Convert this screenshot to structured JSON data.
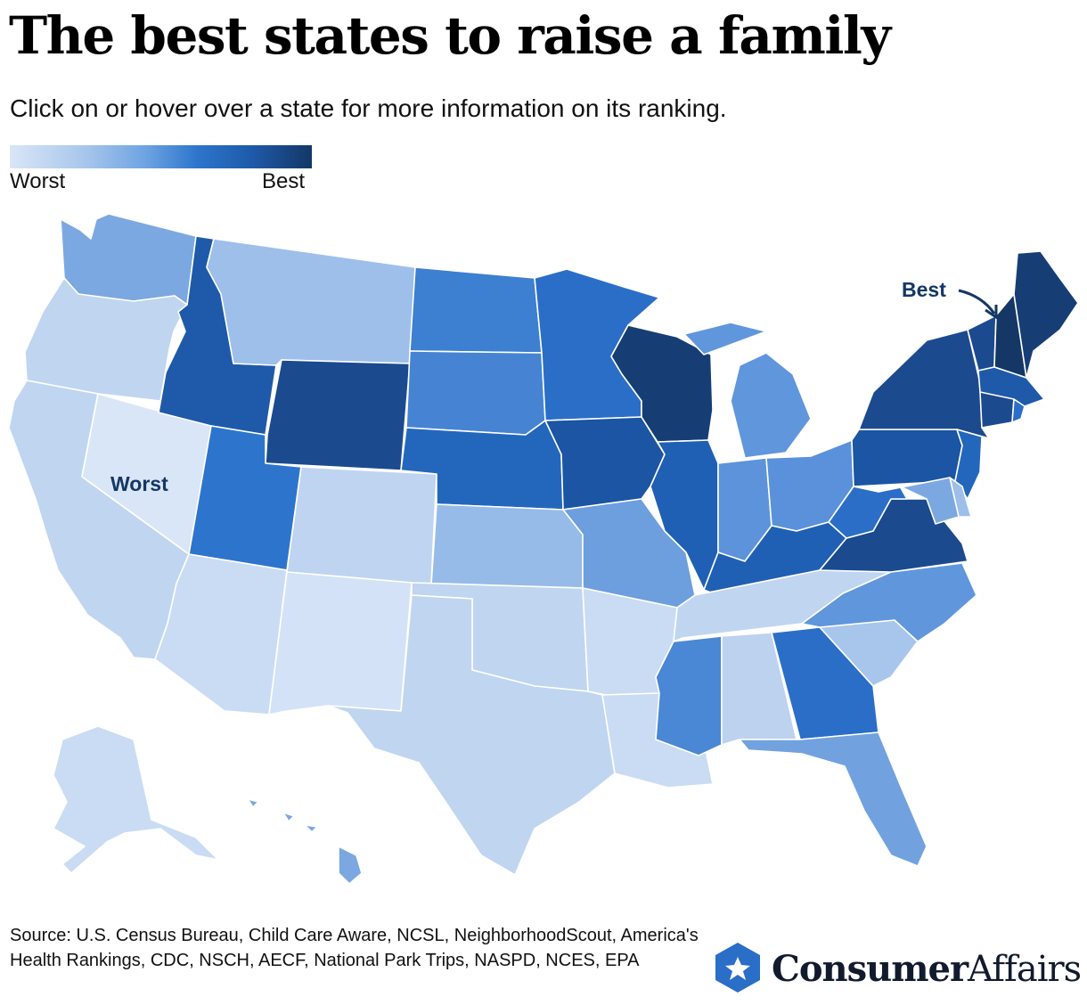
{
  "title": "The best states to raise a family",
  "subtitle": "Click on or hover over a state for more information on its ranking.",
  "legend": {
    "low_label": "Worst",
    "high_label": "Best",
    "colors": [
      "#d9e6f7",
      "#a7c6ec",
      "#6ea3e2",
      "#2d75cc",
      "#1e5aa9",
      "#143766"
    ]
  },
  "annotations": {
    "best": "Best",
    "worst": "Worst"
  },
  "source": "Source: U.S. Census Bureau, Child Care Aware, NCSL, NeighborhoodScout, America's Health Rankings, CDC, NSCH, AECF, National Park Trips, NASPD, NCES, EPA",
  "logo": {
    "brand_bold": "Consumer",
    "brand_light": "Affairs",
    "icon": "star-hexagon-icon"
  },
  "states": [
    {
      "name": "Washington",
      "color": "#7ba8e0"
    },
    {
      "name": "Oregon",
      "color": "#c0d5f0"
    },
    {
      "name": "California",
      "color": "#c0d5f0"
    },
    {
      "name": "Nevada",
      "color": "#d9e6f7"
    },
    {
      "name": "Idaho",
      "color": "#1e5aa9"
    },
    {
      "name": "Montana",
      "color": "#9dbfea"
    },
    {
      "name": "Wyoming",
      "color": "#1b4a8f"
    },
    {
      "name": "Utah",
      "color": "#2d75cc"
    },
    {
      "name": "Arizona",
      "color": "#cadcf3"
    },
    {
      "name": "Colorado",
      "color": "#bfd4f0"
    },
    {
      "name": "New Mexico",
      "color": "#d3e2f6"
    },
    {
      "name": "North Dakota",
      "color": "#3d7fd0"
    },
    {
      "name": "South Dakota",
      "color": "#4684d3"
    },
    {
      "name": "Nebraska",
      "color": "#2367bd"
    },
    {
      "name": "Kansas",
      "color": "#97bbe8"
    },
    {
      "name": "Oklahoma",
      "color": "#c0d5f0"
    },
    {
      "name": "Texas",
      "color": "#c0d5f0"
    },
    {
      "name": "Minnesota",
      "color": "#2a6ec8"
    },
    {
      "name": "Iowa",
      "color": "#1b55a3"
    },
    {
      "name": "Missouri",
      "color": "#6d9fde"
    },
    {
      "name": "Arkansas",
      "color": "#cadcf3"
    },
    {
      "name": "Louisiana",
      "color": "#cadcf3"
    },
    {
      "name": "Wisconsin",
      "color": "#163e75"
    },
    {
      "name": "Illinois",
      "color": "#2060b4"
    },
    {
      "name": "Michigan",
      "color": "#6096dc"
    },
    {
      "name": "Indiana",
      "color": "#5c93da"
    },
    {
      "name": "Ohio",
      "color": "#5a91da"
    },
    {
      "name": "Kentucky",
      "color": "#2060b4"
    },
    {
      "name": "Tennessee",
      "color": "#c0d5f0"
    },
    {
      "name": "Mississippi",
      "color": "#4a87d4"
    },
    {
      "name": "Alabama",
      "color": "#bcd2ef"
    },
    {
      "name": "Georgia",
      "color": "#2a6ec8"
    },
    {
      "name": "Florida",
      "color": "#71a2df"
    },
    {
      "name": "South Carolina",
      "color": "#a8c6ec"
    },
    {
      "name": "North Carolina",
      "color": "#6096dc"
    },
    {
      "name": "Virginia",
      "color": "#1b4a8f"
    },
    {
      "name": "West Virginia",
      "color": "#2a6ec8"
    },
    {
      "name": "Pennsylvania",
      "color": "#1b55a3"
    },
    {
      "name": "New York",
      "color": "#1b4a8f"
    },
    {
      "name": "Vermont",
      "color": "#1b4a8f"
    },
    {
      "name": "New Hampshire",
      "color": "#143766"
    },
    {
      "name": "Maine",
      "color": "#163e75"
    },
    {
      "name": "Massachusetts",
      "color": "#1e5aa9"
    },
    {
      "name": "Connecticut",
      "color": "#1b4a8f"
    },
    {
      "name": "Rhode Island",
      "color": "#2a6ec8"
    },
    {
      "name": "New Jersey",
      "color": "#2367bd"
    },
    {
      "name": "Delaware",
      "color": "#9dbfea"
    },
    {
      "name": "Maryland",
      "color": "#7ba8e0"
    },
    {
      "name": "Alaska",
      "color": "#cadcf3"
    },
    {
      "name": "Hawaii",
      "color": "#7ba8e0"
    }
  ]
}
